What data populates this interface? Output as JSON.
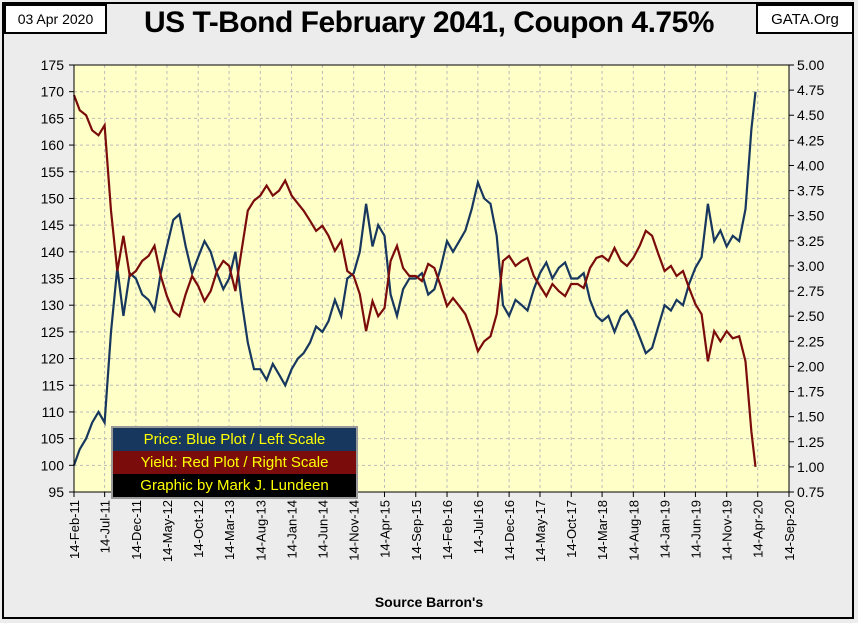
{
  "header": {
    "date": "03 Apr 2020",
    "title": "US T-Bond February 2041, Coupon 4.75%",
    "site": "GATA.Org"
  },
  "legend": {
    "price": "Price:  Blue Plot / Left Scale",
    "yield": "Yield:  Red Plot / Right Scale",
    "credit": "Graphic by Mark J. Lundeen"
  },
  "footer": {
    "source": "Source Barron's"
  },
  "colors": {
    "plot_bg": "#ffffc8",
    "price": "#17375e",
    "yield": "#7b0c0c"
  },
  "chart_data": {
    "type": "line",
    "title": "US T-Bond February 2041, Coupon 4.75%",
    "xlabel": "Source Barron's",
    "grid": true,
    "left_axis": {
      "ylim": [
        95,
        175
      ],
      "ticks": [
        95,
        100,
        105,
        110,
        115,
        120,
        125,
        130,
        135,
        140,
        145,
        150,
        155,
        160,
        165,
        170,
        175
      ]
    },
    "right_axis": {
      "ylim": [
        0.75,
        5.0
      ],
      "ticks": [
        "0.75",
        "1.00",
        "1.25",
        "1.50",
        "1.75",
        "2.00",
        "2.25",
        "2.50",
        "2.75",
        "3.00",
        "3.25",
        "3.50",
        "3.75",
        "4.00",
        "4.25",
        "4.50",
        "4.75",
        "5.00"
      ]
    },
    "x_ticks": [
      "14-Feb-11",
      "14-Jul-11",
      "14-Dec-11",
      "14-May-12",
      "14-Oct-12",
      "14-Mar-13",
      "14-Aug-13",
      "14-Jan-14",
      "14-Jun-14",
      "14-Nov-14",
      "14-Apr-15",
      "14-Sep-15",
      "14-Feb-16",
      "14-Jul-16",
      "14-Dec-16",
      "14-May-17",
      "14-Oct-17",
      "14-Mar-18",
      "14-Aug-18",
      "14-Jan-19",
      "14-Jun-19",
      "14-Nov-19",
      "14-Apr-20",
      "14-Sep-20"
    ],
    "series": [
      {
        "name": "Price",
        "axis": "left",
        "values": [
          [
            "14-Feb-11",
            100
          ],
          [
            "14-Mar-11",
            103
          ],
          [
            "14-Apr-11",
            105
          ],
          [
            "14-May-11",
            108
          ],
          [
            "14-Jun-11",
            110
          ],
          [
            "14-Jul-11",
            108
          ],
          [
            "14-Aug-11",
            125
          ],
          [
            "14-Sep-11",
            137
          ],
          [
            "14-Oct-11",
            128
          ],
          [
            "14-Nov-11",
            136
          ],
          [
            "14-Dec-11",
            135
          ],
          [
            "14-Jan-12",
            132
          ],
          [
            "14-Feb-12",
            131
          ],
          [
            "14-Mar-12",
            129
          ],
          [
            "14-Apr-12",
            136
          ],
          [
            "14-May-12",
            141
          ],
          [
            "14-Jun-12",
            146
          ],
          [
            "14-Jul-12",
            147
          ],
          [
            "14-Aug-12",
            141
          ],
          [
            "14-Sep-12",
            136
          ],
          [
            "14-Oct-12",
            139
          ],
          [
            "14-Nov-12",
            142
          ],
          [
            "14-Dec-12",
            140
          ],
          [
            "14-Jan-13",
            136
          ],
          [
            "14-Feb-13",
            133
          ],
          [
            "14-Mar-13",
            135
          ],
          [
            "14-Apr-13",
            140
          ],
          [
            "14-May-13",
            131
          ],
          [
            "14-Jun-13",
            123
          ],
          [
            "14-Jul-13",
            118
          ],
          [
            "14-Aug-13",
            118
          ],
          [
            "14-Sep-13",
            116
          ],
          [
            "14-Oct-13",
            119
          ],
          [
            "14-Nov-13",
            117
          ],
          [
            "14-Dec-13",
            115
          ],
          [
            "14-Jan-14",
            118
          ],
          [
            "14-Feb-14",
            120
          ],
          [
            "14-Mar-14",
            121
          ],
          [
            "14-Apr-14",
            123
          ],
          [
            "14-May-14",
            126
          ],
          [
            "14-Jun-14",
            125
          ],
          [
            "14-Jul-14",
            127
          ],
          [
            "14-Aug-14",
            131
          ],
          [
            "14-Sep-14",
            128
          ],
          [
            "14-Oct-14",
            135
          ],
          [
            "14-Nov-14",
            136
          ],
          [
            "14-Dec-14",
            140
          ],
          [
            "14-Jan-15",
            149
          ],
          [
            "14-Feb-15",
            141
          ],
          [
            "14-Mar-15",
            145
          ],
          [
            "14-Apr-15",
            143
          ],
          [
            "14-May-15",
            132
          ],
          [
            "14-Jun-15",
            128
          ],
          [
            "14-Jul-15",
            133
          ],
          [
            "14-Aug-15",
            135
          ],
          [
            "14-Sep-15",
            135
          ],
          [
            "14-Oct-15",
            136
          ],
          [
            "14-Nov-15",
            132
          ],
          [
            "14-Dec-15",
            133
          ],
          [
            "14-Jan-16",
            137
          ],
          [
            "14-Feb-16",
            142
          ],
          [
            "14-Mar-16",
            140
          ],
          [
            "14-Apr-16",
            142
          ],
          [
            "14-May-16",
            144
          ],
          [
            "14-Jun-16",
            148
          ],
          [
            "14-Jul-16",
            153
          ],
          [
            "14-Aug-16",
            150
          ],
          [
            "14-Sep-16",
            149
          ],
          [
            "14-Oct-16",
            143
          ],
          [
            "14-Nov-16",
            130
          ],
          [
            "14-Dec-16",
            128
          ],
          [
            "14-Jan-17",
            131
          ],
          [
            "14-Feb-17",
            130
          ],
          [
            "14-Mar-17",
            129
          ],
          [
            "14-Apr-17",
            133
          ],
          [
            "14-May-17",
            136
          ],
          [
            "14-Jun-17",
            138
          ],
          [
            "14-Jul-17",
            135
          ],
          [
            "14-Aug-17",
            137
          ],
          [
            "14-Sep-17",
            138
          ],
          [
            "14-Oct-17",
            135
          ],
          [
            "14-Nov-17",
            135
          ],
          [
            "14-Dec-17",
            136
          ],
          [
            "14-Jan-18",
            131
          ],
          [
            "14-Feb-18",
            128
          ],
          [
            "14-Mar-18",
            127
          ],
          [
            "14-Apr-18",
            128
          ],
          [
            "14-May-18",
            125
          ],
          [
            "14-Jun-18",
            128
          ],
          [
            "14-Jul-18",
            129
          ],
          [
            "14-Aug-18",
            127
          ],
          [
            "14-Sep-18",
            124
          ],
          [
            "14-Oct-18",
            121
          ],
          [
            "14-Nov-18",
            122
          ],
          [
            "14-Dec-18",
            126
          ],
          [
            "14-Jan-19",
            130
          ],
          [
            "14-Feb-19",
            129
          ],
          [
            "14-Mar-19",
            131
          ],
          [
            "14-Apr-19",
            130
          ],
          [
            "14-May-19",
            134
          ],
          [
            "14-Jun-19",
            137
          ],
          [
            "14-Jul-19",
            139
          ],
          [
            "14-Aug-19",
            149
          ],
          [
            "14-Sep-19",
            142
          ],
          [
            "14-Oct-19",
            144
          ],
          [
            "14-Nov-19",
            141
          ],
          [
            "14-Dec-19",
            143
          ],
          [
            "14-Jan-20",
            142
          ],
          [
            "14-Feb-20",
            148
          ],
          [
            "14-Mar-20",
            163
          ],
          [
            "03-Apr-20",
            170
          ]
        ]
      },
      {
        "name": "Yield",
        "axis": "right",
        "values": [
          [
            "14-Feb-11",
            4.7
          ],
          [
            "14-Mar-11",
            4.55
          ],
          [
            "14-Apr-11",
            4.5
          ],
          [
            "14-May-11",
            4.35
          ],
          [
            "14-Jun-11",
            4.3
          ],
          [
            "14-Jul-11",
            4.4
          ],
          [
            "14-Aug-11",
            3.55
          ],
          [
            "14-Sep-11",
            2.95
          ],
          [
            "14-Oct-11",
            3.3
          ],
          [
            "14-Nov-11",
            2.9
          ],
          [
            "14-Dec-11",
            2.95
          ],
          [
            "14-Jan-12",
            3.05
          ],
          [
            "14-Feb-12",
            3.1
          ],
          [
            "14-Mar-12",
            3.2
          ],
          [
            "14-Apr-12",
            2.9
          ],
          [
            "14-May-12",
            2.7
          ],
          [
            "14-Jun-12",
            2.55
          ],
          [
            "14-Jul-12",
            2.5
          ],
          [
            "14-Aug-12",
            2.72
          ],
          [
            "14-Sep-12",
            2.9
          ],
          [
            "14-Oct-12",
            2.8
          ],
          [
            "14-Nov-12",
            2.65
          ],
          [
            "14-Dec-12",
            2.75
          ],
          [
            "14-Jan-13",
            2.95
          ],
          [
            "14-Feb-13",
            3.05
          ],
          [
            "14-Mar-13",
            3.0
          ],
          [
            "14-Apr-13",
            2.75
          ],
          [
            "14-May-13",
            3.15
          ],
          [
            "14-Jun-13",
            3.55
          ],
          [
            "14-Jul-13",
            3.65
          ],
          [
            "14-Aug-13",
            3.7
          ],
          [
            "14-Sep-13",
            3.8
          ],
          [
            "14-Oct-13",
            3.7
          ],
          [
            "14-Nov-13",
            3.75
          ],
          [
            "14-Dec-13",
            3.85
          ],
          [
            "14-Jan-14",
            3.7
          ],
          [
            "14-Feb-14",
            3.62
          ],
          [
            "14-Mar-14",
            3.55
          ],
          [
            "14-Apr-14",
            3.45
          ],
          [
            "14-May-14",
            3.35
          ],
          [
            "14-Jun-14",
            3.4
          ],
          [
            "14-Jul-14",
            3.3
          ],
          [
            "14-Aug-14",
            3.15
          ],
          [
            "14-Sep-14",
            3.25
          ],
          [
            "14-Oct-14",
            2.95
          ],
          [
            "14-Nov-14",
            2.9
          ],
          [
            "14-Dec-14",
            2.72
          ],
          [
            "14-Jan-15",
            2.35
          ],
          [
            "14-Feb-15",
            2.65
          ],
          [
            "14-Mar-15",
            2.5
          ],
          [
            "14-Apr-15",
            2.58
          ],
          [
            "14-May-15",
            3.05
          ],
          [
            "14-Jun-15",
            3.2
          ],
          [
            "14-Jul-15",
            2.98
          ],
          [
            "14-Aug-15",
            2.9
          ],
          [
            "14-Sep-15",
            2.9
          ],
          [
            "14-Oct-15",
            2.85
          ],
          [
            "14-Nov-15",
            3.02
          ],
          [
            "14-Dec-15",
            2.98
          ],
          [
            "14-Jan-16",
            2.8
          ],
          [
            "14-Feb-16",
            2.6
          ],
          [
            "14-Mar-16",
            2.68
          ],
          [
            "14-Apr-16",
            2.6
          ],
          [
            "14-May-16",
            2.52
          ],
          [
            "14-Jun-16",
            2.35
          ],
          [
            "14-Jul-16",
            2.15
          ],
          [
            "14-Aug-16",
            2.25
          ],
          [
            "14-Sep-16",
            2.3
          ],
          [
            "14-Oct-16",
            2.52
          ],
          [
            "14-Nov-16",
            3.05
          ],
          [
            "14-Dec-16",
            3.1
          ],
          [
            "14-Jan-17",
            3.0
          ],
          [
            "14-Feb-17",
            3.05
          ],
          [
            "14-Mar-17",
            3.08
          ],
          [
            "14-Apr-17",
            2.9
          ],
          [
            "14-May-17",
            2.8
          ],
          [
            "14-Jun-17",
            2.7
          ],
          [
            "14-Jul-17",
            2.82
          ],
          [
            "14-Aug-17",
            2.75
          ],
          [
            "14-Sep-17",
            2.7
          ],
          [
            "14-Oct-17",
            2.82
          ],
          [
            "14-Nov-17",
            2.82
          ],
          [
            "14-Dec-17",
            2.78
          ],
          [
            "14-Jan-18",
            2.98
          ],
          [
            "14-Feb-18",
            3.08
          ],
          [
            "14-Mar-18",
            3.1
          ],
          [
            "14-Apr-18",
            3.05
          ],
          [
            "14-May-18",
            3.18
          ],
          [
            "14-Jun-18",
            3.05
          ],
          [
            "14-Jul-18",
            3.0
          ],
          [
            "14-Aug-18",
            3.08
          ],
          [
            "14-Sep-18",
            3.2
          ],
          [
            "14-Oct-18",
            3.35
          ],
          [
            "14-Nov-18",
            3.3
          ],
          [
            "14-Dec-18",
            3.12
          ],
          [
            "14-Jan-19",
            2.95
          ],
          [
            "14-Feb-19",
            3.0
          ],
          [
            "14-Mar-19",
            2.9
          ],
          [
            "14-Apr-19",
            2.95
          ],
          [
            "14-May-19",
            2.78
          ],
          [
            "14-Jun-19",
            2.62
          ],
          [
            "14-Jul-19",
            2.52
          ],
          [
            "14-Aug-19",
            2.05
          ],
          [
            "14-Sep-19",
            2.35
          ],
          [
            "14-Oct-19",
            2.25
          ],
          [
            "14-Nov-19",
            2.35
          ],
          [
            "14-Dec-19",
            2.28
          ],
          [
            "14-Jan-20",
            2.3
          ],
          [
            "14-Feb-20",
            2.05
          ],
          [
            "14-Mar-20",
            1.35
          ],
          [
            "03-Apr-20",
            1.0
          ]
        ]
      }
    ]
  }
}
